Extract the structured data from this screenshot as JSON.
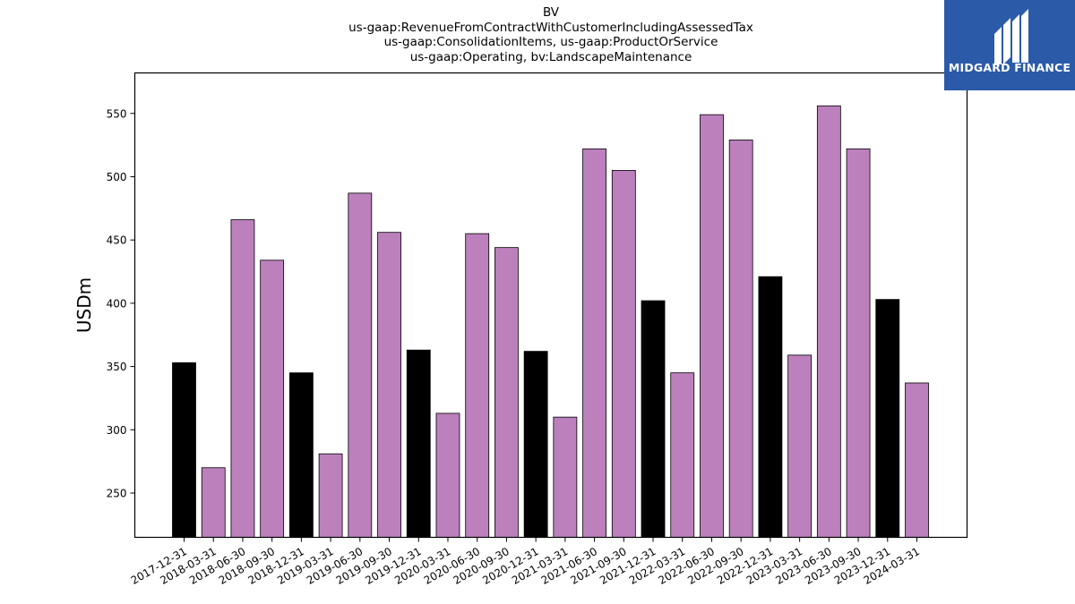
{
  "logo": {
    "text": "MIDGARD FINANCE",
    "background_color": "#2b5aa8",
    "icon": "midgard-logo-icon"
  },
  "colors": {
    "year_end_bar": "#000000",
    "quarter_bar": "#bc80bd",
    "bar_edge": "#000000"
  },
  "chart_data": {
    "type": "bar",
    "title_lines": [
      "BV",
      "us-gaap:RevenueFromContractWithCustomerIncludingAssessedTax",
      "us-gaap:ConsolidationItems, us-gaap:ProductOrService",
      "us-gaap:Operating, bv:LandscapeMaintenance"
    ],
    "xlabel": "",
    "ylabel": "USDm",
    "ylim": [
      215,
      582
    ],
    "yticks": [
      250,
      300,
      350,
      400,
      450,
      500,
      550
    ],
    "grid": false,
    "categories": [
      "2017-12-31",
      "2018-03-31",
      "2018-06-30",
      "2018-09-30",
      "2018-12-31",
      "2019-03-31",
      "2019-06-30",
      "2019-09-30",
      "2019-12-31",
      "2020-03-31",
      "2020-06-30",
      "2020-09-30",
      "2020-12-31",
      "2021-03-31",
      "2021-06-30",
      "2021-09-30",
      "2021-12-31",
      "2022-03-31",
      "2022-06-30",
      "2022-09-30",
      "2022-12-31",
      "2023-03-31",
      "2023-06-30",
      "2023-09-30",
      "2023-12-31",
      "2024-03-31"
    ],
    "values": [
      353,
      270,
      466,
      434,
      345,
      281,
      487,
      456,
      363,
      313,
      455,
      444,
      362,
      310,
      522,
      505,
      402,
      345,
      549,
      529,
      421,
      359,
      556,
      522,
      403,
      337
    ]
  }
}
